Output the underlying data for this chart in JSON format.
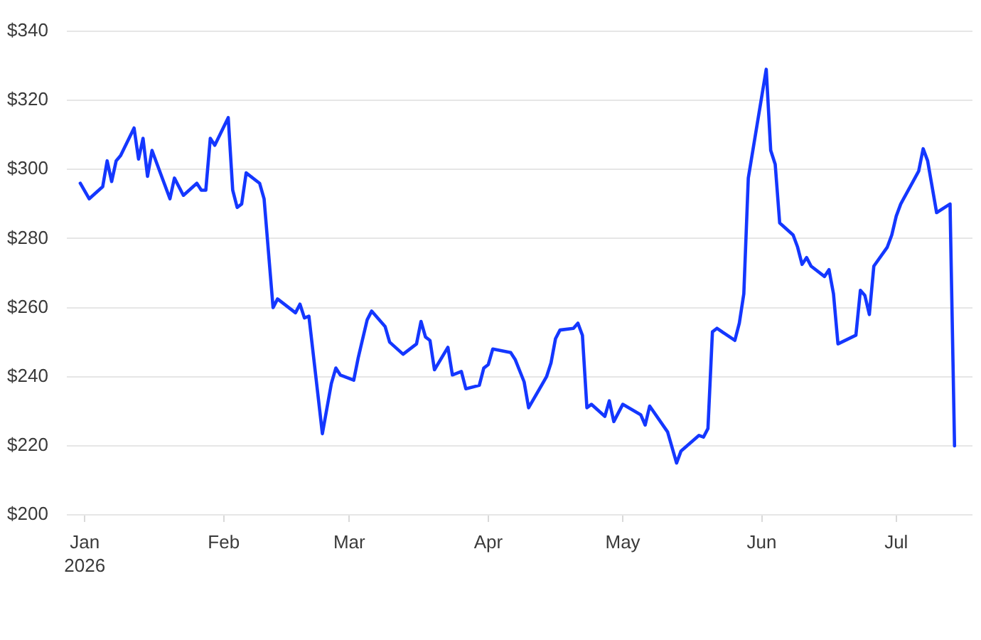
{
  "chart_data": {
    "type": "line",
    "x": [
      "2025-12-31",
      "2026-01-02",
      "2026-01-05",
      "2026-01-06",
      "2026-01-07",
      "2026-01-08",
      "2026-01-09",
      "2026-01-12",
      "2026-01-13",
      "2026-01-14",
      "2026-01-15",
      "2026-01-16",
      "2026-01-20",
      "2026-01-21",
      "2026-01-23",
      "2026-01-26",
      "2026-01-27",
      "2026-01-28",
      "2026-01-29",
      "2026-01-30",
      "2026-02-02",
      "2026-02-03",
      "2026-02-04",
      "2026-02-05",
      "2026-02-06",
      "2026-02-09",
      "2026-02-10",
      "2026-02-12",
      "2026-02-13",
      "2026-02-17",
      "2026-02-18",
      "2026-02-19",
      "2026-02-20",
      "2026-02-23",
      "2026-02-25",
      "2026-02-26",
      "2026-02-27",
      "2026-03-02",
      "2026-03-03",
      "2026-03-05",
      "2026-03-06",
      "2026-03-09",
      "2026-03-10",
      "2026-03-13",
      "2026-03-16",
      "2026-03-17",
      "2026-03-18",
      "2026-03-19",
      "2026-03-20",
      "2026-03-23",
      "2026-03-24",
      "2026-03-26",
      "2026-03-27",
      "2026-03-30",
      "2026-03-31",
      "2026-04-01",
      "2026-04-02",
      "2026-04-06",
      "2026-04-07",
      "2026-04-09",
      "2026-04-10",
      "2026-04-14",
      "2026-04-15",
      "2026-04-16",
      "2026-04-17",
      "2026-04-20",
      "2026-04-21",
      "2026-04-22",
      "2026-04-23",
      "2026-04-24",
      "2026-04-27",
      "2026-04-28",
      "2026-04-29",
      "2026-05-01",
      "2026-05-05",
      "2026-05-06",
      "2026-05-07",
      "2026-05-11",
      "2026-05-13",
      "2026-05-14",
      "2026-05-18",
      "2026-05-19",
      "2026-05-20",
      "2026-05-21",
      "2026-05-22",
      "2026-05-26",
      "2026-05-27",
      "2026-05-28",
      "2026-05-29",
      "2026-06-02",
      "2026-06-03",
      "2026-06-04",
      "2026-06-05",
      "2026-06-08",
      "2026-06-09",
      "2026-06-10",
      "2026-06-11",
      "2026-06-12",
      "2026-06-15",
      "2026-06-16",
      "2026-06-17",
      "2026-06-18",
      "2026-06-22",
      "2026-06-23",
      "2026-06-24",
      "2026-06-25",
      "2026-06-26",
      "2026-06-29",
      "2026-06-30",
      "2026-07-01",
      "2026-07-02",
      "2026-07-06",
      "2026-07-07",
      "2026-07-08",
      "2026-07-10",
      "2026-07-13",
      "2026-07-14"
    ],
    "series": [
      {
        "color": "#1437ff",
        "values": [
          296,
          291.5,
          295,
          302.5,
          296.5,
          302.5,
          304,
          312,
          303,
          309,
          298,
          305.5,
          291.5,
          297.5,
          292.5,
          296,
          294,
          294,
          309,
          307,
          315,
          294,
          289,
          290,
          299,
          296,
          291.5,
          260,
          262.5,
          258.5,
          261,
          257,
          257.5,
          223.5,
          238,
          242.5,
          240.5,
          239,
          245.5,
          256.5,
          259,
          254.5,
          250,
          246.5,
          249.5,
          256,
          251.5,
          250.5,
          242,
          248.5,
          240.5,
          241.5,
          236.5,
          237.5,
          242.5,
          243.5,
          248,
          247,
          245,
          238.5,
          231,
          240,
          244,
          251,
          253.5,
          254,
          255.5,
          252,
          231,
          232,
          228.5,
          233,
          227,
          232,
          229,
          226,
          231.5,
          224,
          215,
          218.5,
          223,
          222.5,
          225,
          253,
          254,
          250.5,
          255.5,
          264,
          297.5,
          329,
          305.5,
          301.5,
          284.5,
          281,
          277.5,
          272.5,
          274.5,
          272,
          269,
          271,
          264,
          249.5,
          252,
          265,
          263.5,
          258,
          272,
          277.5,
          281,
          286.5,
          290,
          299.5,
          306,
          302.5,
          287.5,
          290,
          220
        ]
      }
    ],
    "xlim": [
      "2025-12-28",
      "2026-07-18"
    ],
    "xticks": [
      {
        "value": "2026-01-01",
        "label": "Jan\n2026"
      },
      {
        "value": "2026-02-01",
        "label": "Feb"
      },
      {
        "value": "2026-03-01",
        "label": "Mar"
      },
      {
        "value": "2026-04-01",
        "label": "Apr"
      },
      {
        "value": "2026-05-01",
        "label": "May"
      },
      {
        "value": "2026-06-01",
        "label": "Jun"
      },
      {
        "value": "2026-07-01",
        "label": "Jul"
      }
    ],
    "ylim": [
      200,
      340
    ],
    "yticks": [
      {
        "value": 200,
        "label": "$200"
      },
      {
        "value": 220,
        "label": "$220"
      },
      {
        "value": 240,
        "label": "$240"
      },
      {
        "value": 260,
        "label": "$260"
      },
      {
        "value": 280,
        "label": "$280"
      },
      {
        "value": 300,
        "label": "$300"
      },
      {
        "value": 320,
        "label": "$320"
      },
      {
        "value": 340,
        "label": "$340"
      }
    ],
    "grid": "y",
    "legend": false,
    "line_style": "solid"
  }
}
